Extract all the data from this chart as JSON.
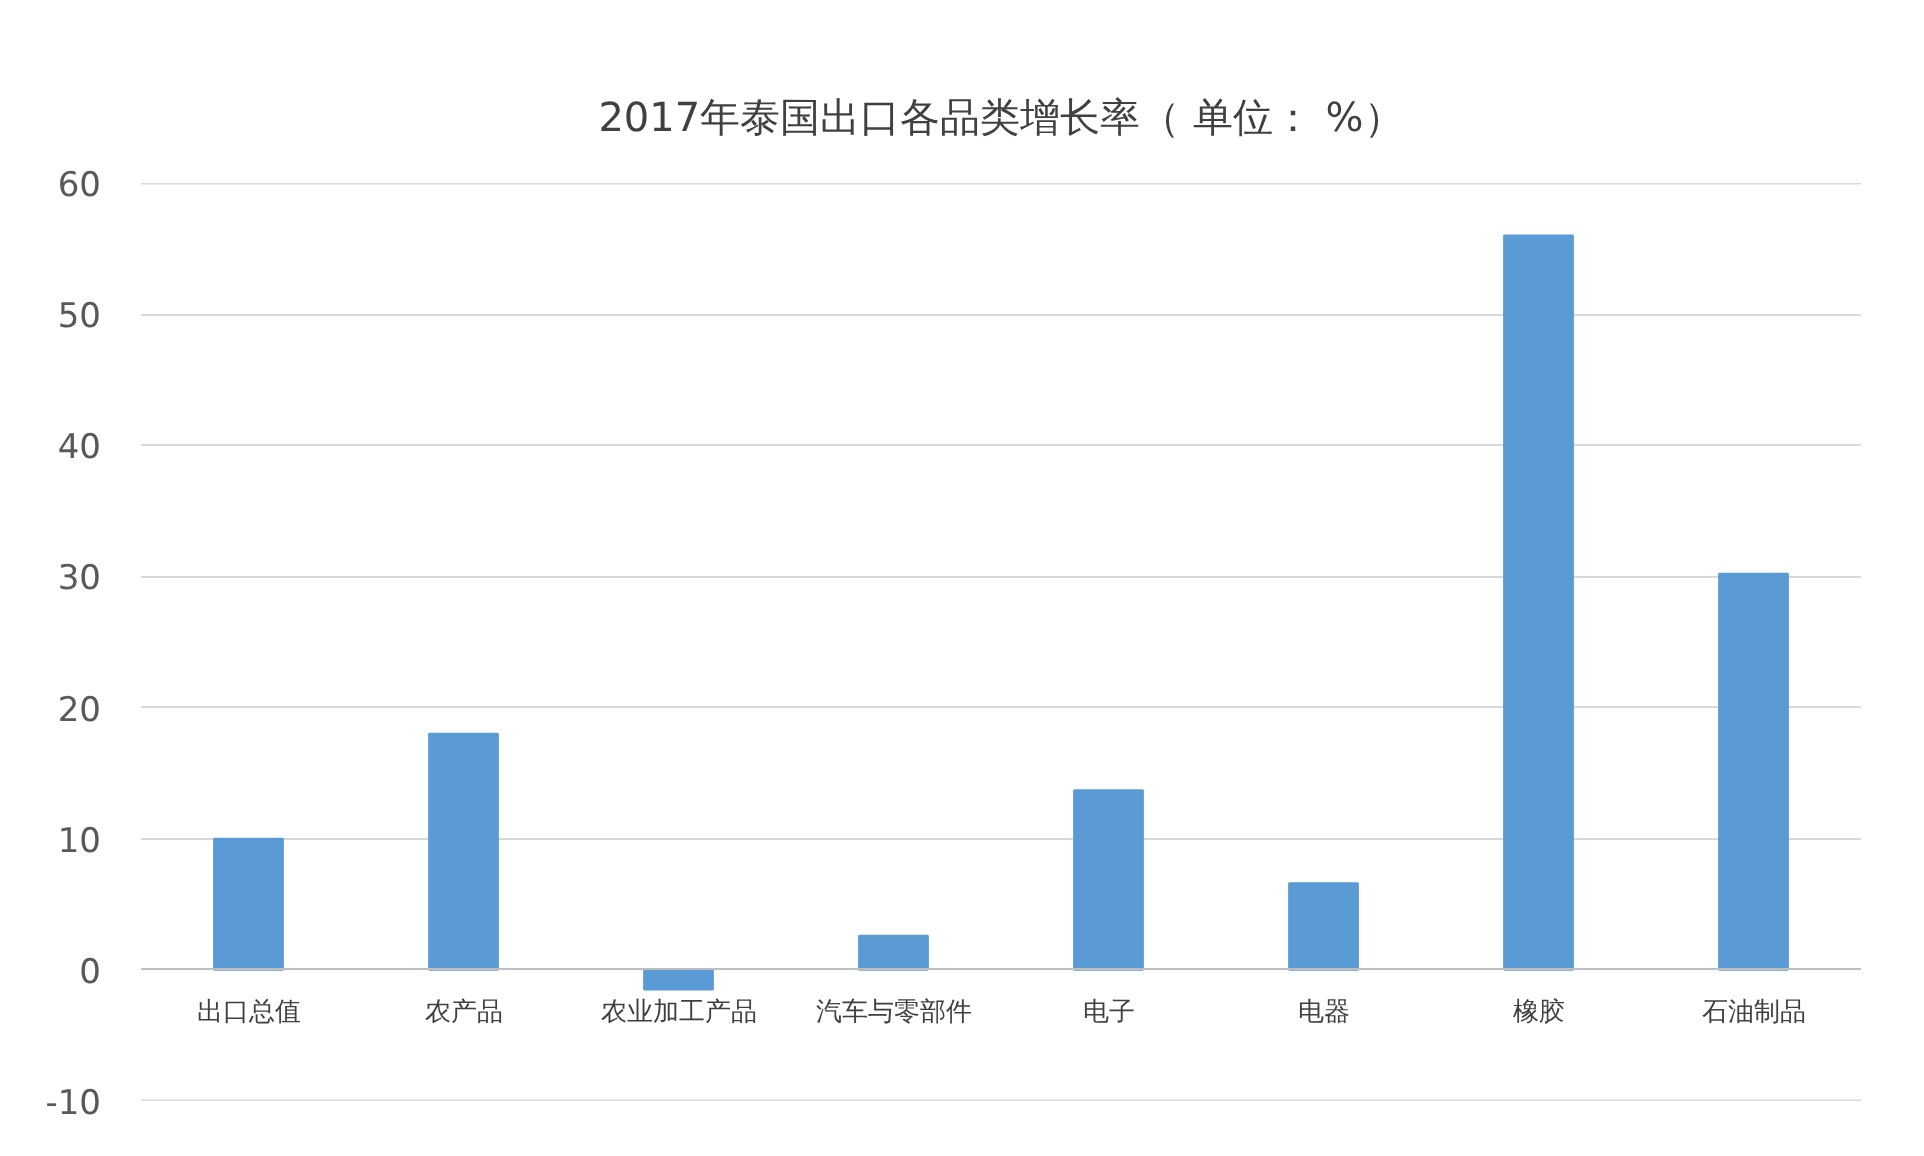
{
  "chart_data": {
    "type": "bar",
    "title": "2017年泰国出口各品类增长率（ 单位： %）",
    "categories": [
      "出口总值",
      "农产品",
      "农业加工产品",
      "汽车与零部件",
      "电子",
      "电器",
      "橡胶",
      "石油制品"
    ],
    "values": [
      10.0,
      18.0,
      -1.5,
      2.6,
      13.7,
      6.6,
      56.0,
      30.2
    ],
    "color": "#5b9bd5",
    "ylim": [
      -10,
      60
    ],
    "yticks": [
      -10,
      0,
      10,
      20,
      30,
      40,
      50,
      60
    ],
    "grid": "y"
  }
}
